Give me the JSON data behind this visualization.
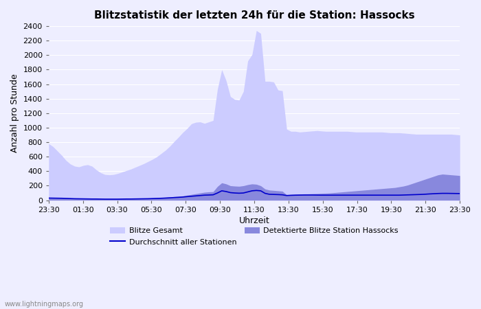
{
  "title": "Blitzstatistik der letzten 24h für die Station: Hassocks",
  "xlabel": "Uhrzeit",
  "ylabel": "Anzahl pro Stunde",
  "watermark": "www.lightningmaps.org",
  "ylim": [
    0,
    2400
  ],
  "yticks": [
    0,
    200,
    400,
    600,
    800,
    1000,
    1200,
    1400,
    1600,
    1800,
    2000,
    2200,
    2400
  ],
  "xtick_labels": [
    "23:30",
    "01:30",
    "03:30",
    "05:30",
    "07:30",
    "09:30",
    "11:30",
    "13:30",
    "15:30",
    "17:30",
    "19:30",
    "21:30",
    "23:30"
  ],
  "color_gesamt": "#ccccff",
  "color_detektiert": "#8888dd",
  "color_durchschnitt": "#0000cc",
  "legend_gesamt": "Blitze Gesamt",
  "legend_detektiert": "Detektierte Blitze Station Hassocks",
  "legend_durchschnitt": "Durchschnitt aller Stationen",
  "bg_color": "#eeeeff",
  "grid_color": "#ffffff",
  "gesamt": [
    780,
    740,
    680,
    620,
    550,
    500,
    470,
    460,
    480,
    490,
    470,
    420,
    380,
    355,
    350,
    355,
    370,
    390,
    410,
    430,
    455,
    480,
    505,
    535,
    565,
    600,
    645,
    690,
    745,
    810,
    870,
    935,
    990,
    1055,
    1075,
    1080,
    1060,
    1080,
    1100,
    1530,
    1800,
    1650,
    1430,
    1390,
    1380,
    1500,
    1920,
    2010,
    2340,
    2300,
    1640,
    1640,
    1630,
    1520,
    1510,
    980,
    950,
    950,
    940,
    945,
    950,
    955,
    960,
    955,
    950,
    950,
    950,
    950,
    950,
    950,
    945,
    940,
    940,
    940,
    940,
    940,
    940,
    940,
    935,
    930,
    930,
    930,
    925,
    920,
    915,
    910,
    910,
    910,
    910,
    910,
    910,
    910,
    910,
    910,
    905,
    900
  ],
  "detektiert": [
    40,
    38,
    36,
    35,
    32,
    30,
    28,
    27,
    25,
    24,
    23,
    22,
    21,
    20,
    20,
    20,
    21,
    22,
    23,
    24,
    25,
    26,
    27,
    28,
    30,
    33,
    36,
    40,
    45,
    50,
    55,
    60,
    70,
    80,
    90,
    100,
    110,
    115,
    118,
    190,
    240,
    225,
    200,
    195,
    192,
    200,
    215,
    225,
    220,
    200,
    155,
    140,
    135,
    130,
    125,
    75,
    80,
    82,
    85,
    87,
    88,
    90,
    92,
    95,
    97,
    100,
    105,
    110,
    115,
    120,
    125,
    130,
    135,
    140,
    145,
    150,
    155,
    160,
    165,
    170,
    175,
    185,
    195,
    210,
    230,
    250,
    270,
    290,
    310,
    330,
    350,
    360,
    355,
    350,
    345,
    340
  ],
  "durchschnitt": [
    30,
    29,
    28,
    27,
    25,
    23,
    21,
    20,
    19,
    18,
    17,
    17,
    16,
    15,
    15,
    15,
    15,
    16,
    17,
    17,
    18,
    19,
    20,
    21,
    23,
    25,
    27,
    30,
    33,
    37,
    40,
    44,
    50,
    55,
    60,
    65,
    70,
    72,
    75,
    100,
    130,
    120,
    105,
    100,
    97,
    100,
    115,
    130,
    135,
    130,
    95,
    82,
    80,
    78,
    75,
    65,
    68,
    70,
    71,
    72,
    72,
    72,
    71,
    70,
    70,
    70,
    70,
    70,
    70,
    70,
    70,
    70,
    70,
    70,
    70,
    70,
    70,
    70,
    70,
    70,
    70,
    70,
    72,
    74,
    76,
    78,
    80,
    83,
    87,
    90,
    93,
    95,
    95,
    94,
    93,
    92
  ]
}
